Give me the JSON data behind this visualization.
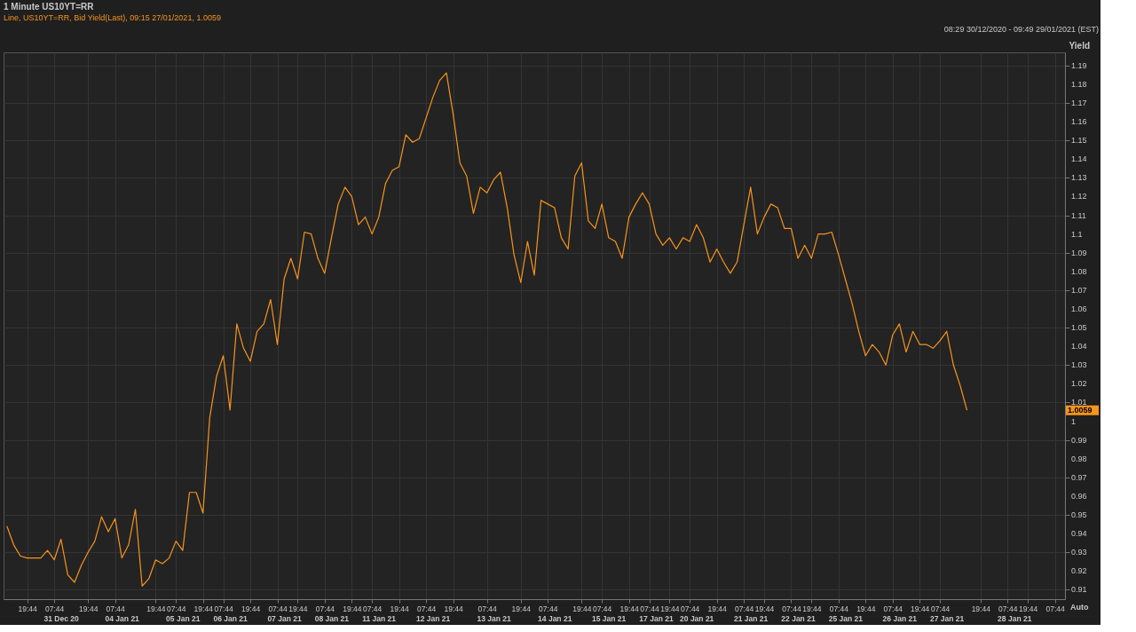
{
  "chart_data": {
    "type": "line",
    "title": "1 Minute US10YT=RR",
    "subtitle": "Line, US10YT=RR, Bid Yield(Last), 09:15 27/01/2021, 1.0059",
    "ylabel": "Yield",
    "categories": [
      null,
      null,
      null,
      "19:44",
      null,
      null,
      null,
      "07:44",
      null,
      null,
      null,
      null,
      "19:44",
      null,
      null,
      null,
      "07:44",
      null,
      null,
      null,
      null,
      null,
      "19:44",
      null,
      null,
      "07:44",
      null,
      null,
      null,
      "19:44",
      null,
      null,
      "07:44",
      null,
      null,
      null,
      "19:44",
      null,
      null,
      null,
      "07:44",
      null,
      null,
      "19:44",
      null,
      null,
      null,
      "07:44",
      null,
      null,
      null,
      "19:44",
      null,
      null,
      "07:44",
      null,
      null,
      null,
      "19:44",
      null,
      null,
      null,
      "07:44",
      null,
      null,
      null,
      "19:44",
      null,
      null,
      null,
      null,
      "07:44",
      null,
      null,
      null,
      null,
      "19:44",
      null,
      null,
      null,
      "07:44",
      null,
      null,
      null,
      null,
      "19:44",
      null,
      null,
      "07:44",
      null,
      null,
      null,
      "19:44",
      null,
      null,
      "07:44",
      null,
      null,
      "19:44",
      null,
      null,
      "07:44",
      null,
      null,
      null,
      "19:44",
      null,
      null,
      null,
      "07:44",
      null,
      null,
      "19:44",
      null,
      null,
      null,
      "07:44",
      null,
      null,
      "19:44",
      null,
      null,
      null,
      "07:44",
      null,
      null,
      null,
      "19:44",
      null,
      null,
      null,
      "07:44",
      null,
      null,
      null,
      "19:44",
      null,
      null,
      "07:44",
      null,
      null,
      null,
      null,
      null,
      "19:44",
      null,
      null,
      null,
      "07:44",
      null,
      null,
      "19:44",
      null,
      null,
      null,
      "07:44",
      null
    ],
    "series": [
      {
        "color": "#f7941d",
        "values": [
          0.944,
          0.934,
          0.928,
          0.927,
          0.927,
          0.927,
          0.931,
          0.926,
          0.937,
          0.918,
          0.914,
          0.923,
          0.93,
          0.936,
          0.949,
          0.941,
          0.948,
          0.927,
          0.934,
          0.953,
          0.912,
          0.916,
          0.926,
          0.924,
          0.927,
          0.936,
          0.931,
          0.962,
          0.962,
          0.951,
          1.002,
          1.024,
          1.035,
          1.006,
          1.052,
          1.039,
          1.032,
          1.048,
          1.052,
          1.065,
          1.041,
          1.076,
          1.087,
          1.076,
          1.101,
          1.1,
          1.087,
          1.079,
          1.098,
          1.116,
          1.125,
          1.12,
          1.105,
          1.109,
          1.1,
          1.109,
          1.127,
          1.134,
          1.136,
          1.153,
          1.149,
          1.151,
          1.162,
          1.173,
          1.182,
          1.186,
          1.164,
          1.138,
          1.131,
          1.111,
          1.125,
          1.122,
          1.129,
          1.133,
          1.114,
          1.089,
          1.074,
          1.096,
          1.078,
          1.118,
          1.116,
          1.114,
          1.098,
          1.092,
          1.131,
          1.138,
          1.107,
          1.103,
          1.116,
          1.098,
          1.096,
          1.087,
          1.109,
          1.116,
          1.122,
          1.116,
          1.1,
          1.094,
          1.098,
          1.092,
          1.098,
          1.096,
          1.105,
          1.098,
          1.085,
          1.092,
          1.085,
          1.079,
          1.085,
          1.105,
          1.125,
          1.1,
          1.109,
          1.116,
          1.114,
          1.103,
          1.103,
          1.087,
          1.094,
          1.087,
          1.1,
          1.1,
          1.101,
          1.089,
          1.076,
          1.063,
          1.048,
          1.035,
          1.041,
          1.037,
          1.03,
          1.046,
          1.052,
          1.037,
          1.048,
          1.041,
          1.041,
          1.039,
          1.043,
          1.048,
          1.03,
          1.019,
          1.0059,
          null,
          null,
          null,
          null,
          null,
          null,
          null,
          null,
          null,
          null,
          null,
          null,
          null,
          null
        ]
      }
    ],
    "ylim": [
      0.905,
      1.197
    ],
    "yticks": [
      0.91,
      0.92,
      0.93,
      0.94,
      0.95,
      0.96,
      0.97,
      0.98,
      0.99,
      1,
      1.01,
      1.02,
      1.03,
      1.04,
      1.05,
      1.06,
      1.07,
      1.08,
      1.09,
      1.1,
      1.11,
      1.12,
      1.13,
      1.14,
      1.15,
      1.16,
      1.17,
      1.18,
      1.19
    ],
    "grid": true,
    "annotations": [
      "08:29 30/12/2020 - 09:49 29/01/2021 (EST)",
      "Auto",
      "1.0059",
      "31 Dec 20",
      "04 Jan 21",
      "05 Jan 21",
      "06 Jan 21",
      "07 Jan 21",
      "08 Jan 21",
      "11 Jan 21",
      "12 Jan 21",
      "13 Jan 21",
      "14 Jan 21",
      "15 Jan 21",
      "17 Jan 21",
      "20 Jan 21",
      "21 Jan 21",
      "22 Jan 21",
      "25 Jan 21",
      "26 Jan 21",
      "27 Jan 21",
      "28 Jan 21"
    ]
  }
}
